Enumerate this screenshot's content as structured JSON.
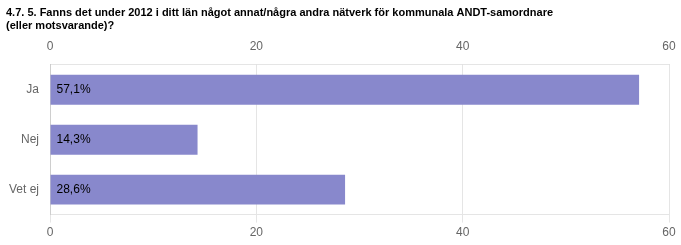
{
  "chart_data": {
    "type": "bar",
    "orientation": "horizontal",
    "title": [
      "4.7. 5. Fanns det under 2012 i ditt län något annat/några andra nätverk för kommunala ANDT-samordnare",
      "(eller motsvarande)?"
    ],
    "categories": [
      "Ja",
      "Nej",
      "Vet ej"
    ],
    "values": [
      57.1,
      14.3,
      28.6
    ],
    "value_labels": [
      "57,1%",
      "14,3%",
      "28,6%"
    ],
    "data_labels": true,
    "color": "#8888cc",
    "xlim": [
      0,
      60
    ],
    "xticks": [
      0,
      20,
      40,
      60
    ],
    "grid": true
  }
}
